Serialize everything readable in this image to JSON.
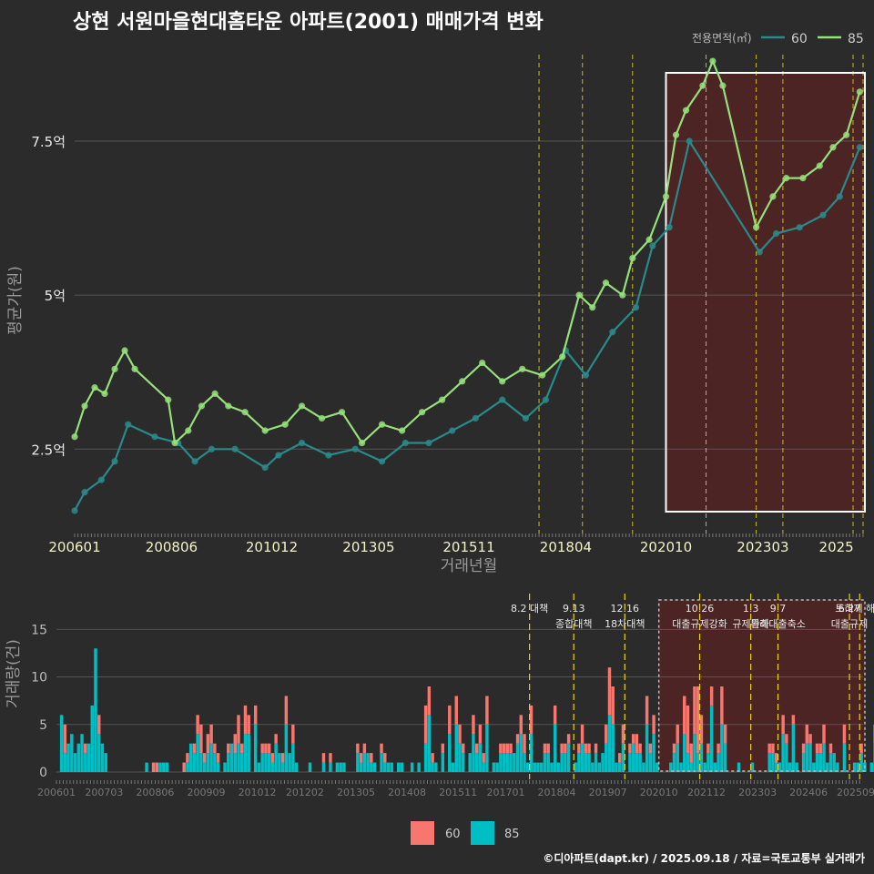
{
  "title": "상현 서원마을현대홈타운 아파트(2001) 매매가격 변화",
  "credit": "©디아파트(dapt.kr) / 2025.09.18 / 자료=국토교통부 실거래가",
  "colors": {
    "background": "#2b2b2b",
    "grid": "#555555",
    "series_60_line": "#2a8a8a",
    "series_85_line": "#95e07a",
    "bar_60": "#f8766d",
    "bar_85": "#00bfc4",
    "event_line": "#e8d21a",
    "highlight_fill": "#6a1f1f"
  },
  "chart_data": [
    {
      "type": "line",
      "ylabel": "평균가(원)",
      "xlabel": "거래년월",
      "y_ticks": [
        {
          "value": 2.5,
          "label": "2.5억"
        },
        {
          "value": 5,
          "label": "5억"
        },
        {
          "value": 7.5,
          "label": "7.5억"
        }
      ],
      "ylim": [
        1.1,
        9.2
      ],
      "x_ticks": [
        "200601",
        "200806",
        "201012",
        "201305",
        "201511",
        "201804",
        "202010",
        "202303",
        "2025"
      ],
      "legend": {
        "title": "전용면적(㎡)",
        "placement": "top-right",
        "items": [
          "60",
          "85"
        ]
      },
      "series": [
        {
          "name": "85",
          "points": [
            [
              "2006-01",
              2.7
            ],
            [
              "2006-04",
              3.2
            ],
            [
              "2006-07",
              3.5
            ],
            [
              "2006-10",
              3.4
            ],
            [
              "2007-01",
              3.8
            ],
            [
              "2007-04",
              4.1
            ],
            [
              "2007-07",
              3.8
            ],
            [
              "2008-05",
              3.3
            ],
            [
              "2008-07",
              2.6
            ],
            [
              "2008-11",
              2.8
            ],
            [
              "2009-03",
              3.2
            ],
            [
              "2009-07",
              3.4
            ],
            [
              "2009-11",
              3.2
            ],
            [
              "2010-04",
              3.1
            ],
            [
              "2010-10",
              2.8
            ],
            [
              "2011-04",
              2.9
            ],
            [
              "2011-09",
              3.2
            ],
            [
              "2012-03",
              3.0
            ],
            [
              "2012-09",
              3.1
            ],
            [
              "2013-03",
              2.6
            ],
            [
              "2013-09",
              2.9
            ],
            [
              "2014-03",
              2.8
            ],
            [
              "2014-09",
              3.1
            ],
            [
              "2015-03",
              3.3
            ],
            [
              "2015-09",
              3.6
            ],
            [
              "2016-03",
              3.9
            ],
            [
              "2016-09",
              3.6
            ],
            [
              "2017-03",
              3.8
            ],
            [
              "2017-09",
              3.7
            ],
            [
              "2018-03",
              4.0
            ],
            [
              "2018-08",
              5.0
            ],
            [
              "2018-12",
              4.8
            ],
            [
              "2019-04",
              5.2
            ],
            [
              "2019-09",
              5.0
            ],
            [
              "2019-12",
              5.6
            ],
            [
              "2020-05",
              5.9
            ],
            [
              "2020-10",
              6.6
            ],
            [
              "2021-01",
              7.6
            ],
            [
              "2021-04",
              8.0
            ],
            [
              "2021-09",
              8.4
            ],
            [
              "2021-12",
              8.8
            ],
            [
              "2022-03",
              8.4
            ],
            [
              "2023-01",
              6.1
            ],
            [
              "2023-06",
              6.6
            ],
            [
              "2023-10",
              6.9
            ],
            [
              "2024-03",
              6.9
            ],
            [
              "2024-08",
              7.1
            ],
            [
              "2024-12",
              7.4
            ],
            [
              "2025-04",
              7.6
            ],
            [
              "2025-08",
              8.3
            ]
          ]
        },
        {
          "name": "60",
          "points": [
            [
              "2006-01",
              1.5
            ],
            [
              "2006-04",
              1.8
            ],
            [
              "2006-09",
              2.0
            ],
            [
              "2007-01",
              2.3
            ],
            [
              "2007-05",
              2.9
            ],
            [
              "2008-01",
              2.7
            ],
            [
              "2008-08",
              2.6
            ],
            [
              "2009-01",
              2.3
            ],
            [
              "2009-06",
              2.5
            ],
            [
              "2010-01",
              2.5
            ],
            [
              "2010-10",
              2.2
            ],
            [
              "2011-02",
              2.4
            ],
            [
              "2011-09",
              2.6
            ],
            [
              "2012-05",
              2.4
            ],
            [
              "2013-01",
              2.5
            ],
            [
              "2013-09",
              2.3
            ],
            [
              "2014-04",
              2.6
            ],
            [
              "2014-11",
              2.6
            ],
            [
              "2015-06",
              2.8
            ],
            [
              "2016-01",
              3.0
            ],
            [
              "2016-09",
              3.3
            ],
            [
              "2017-04",
              3.0
            ],
            [
              "2017-10",
              3.3
            ],
            [
              "2018-04",
              4.1
            ],
            [
              "2018-10",
              3.7
            ],
            [
              "2019-06",
              4.4
            ],
            [
              "2020-01",
              4.8
            ],
            [
              "2020-06",
              5.8
            ],
            [
              "2020-11",
              6.1
            ],
            [
              "2021-05",
              7.5
            ],
            [
              "2023-02",
              5.7
            ],
            [
              "2023-07",
              6.0
            ],
            [
              "2024-02",
              6.1
            ],
            [
              "2024-09",
              6.3
            ],
            [
              "2025-02",
              6.6
            ],
            [
              "2025-08",
              7.4
            ]
          ]
        }
      ],
      "event_dates": [
        "2017-08",
        "2018-09",
        "2019-12",
        "2021-10",
        "2023-01",
        "2023-09",
        "2025-06",
        "2025-09"
      ],
      "highlight": {
        "from": "2020-10",
        "to": "2025-09"
      }
    },
    {
      "type": "bar",
      "ylabel": "거래량(건)",
      "y_ticks": [
        0,
        5,
        10,
        15
      ],
      "ylim": [
        0,
        18
      ],
      "x_ticks": [
        "200601",
        "200703",
        "200806",
        "200909",
        "201012",
        "201202",
        "201305",
        "201408",
        "201511",
        "201701",
        "201804",
        "201907",
        "202010",
        "202112",
        "202303",
        "202406",
        "202509"
      ],
      "legend": {
        "placement": "bottom",
        "items": [
          "60",
          "85"
        ]
      },
      "annotations": [
        {
          "date": "2017-08",
          "lines": [
            "8.2 대책"
          ]
        },
        {
          "date": "2018-09",
          "lines": [
            "9.13",
            "종합대책"
          ]
        },
        {
          "date": "2019-12",
          "lines": [
            "12.16",
            "18차대책"
          ]
        },
        {
          "date": "2021-10",
          "lines": [
            "10.26",
            "대출규제강화"
          ]
        },
        {
          "date": "2023-01",
          "lines": [
            "1.3",
            "규제완화"
          ]
        },
        {
          "date": "2023-09",
          "lines": [
            "9.7",
            "특례대출축소"
          ]
        },
        {
          "date": "2025-06",
          "lines": [
            "6.27",
            "대출규제"
          ]
        },
        {
          "date": "2025-09",
          "lines": [
            "토허제 해제"
          ]
        }
      ],
      "monthly_85": [
        0,
        6,
        2,
        3,
        4,
        2,
        3,
        4,
        2,
        3,
        7,
        13,
        4,
        3,
        2,
        0,
        0,
        0,
        0,
        0,
        0,
        0,
        0,
        0,
        0,
        0,
        1,
        0,
        0,
        0,
        1,
        1,
        1,
        0,
        0,
        0,
        0,
        0,
        1,
        3,
        2,
        4,
        2,
        1,
        2,
        3,
        2,
        1,
        0,
        1,
        2,
        3,
        2,
        3,
        2,
        4,
        4,
        0,
        5,
        1,
        2,
        2,
        2,
        1,
        3,
        2,
        1,
        5,
        2,
        3,
        1,
        0,
        0,
        0,
        1,
        0,
        0,
        0,
        1,
        0,
        1,
        0,
        1,
        1,
        1,
        0,
        0,
        0,
        2,
        1,
        2,
        2,
        1,
        1,
        0,
        2,
        1,
        1,
        1,
        0,
        1,
        1,
        0,
        0,
        1,
        0,
        1,
        0,
        3,
        6,
        1,
        1,
        0,
        2,
        0,
        4,
        1,
        5,
        3,
        2,
        0,
        2,
        4,
        2,
        3,
        1,
        5,
        0,
        1,
        1,
        2,
        2,
        2,
        2,
        2,
        3,
        4,
        2,
        1,
        4,
        1,
        1,
        1,
        2,
        2,
        1,
        5,
        1,
        2,
        2,
        3,
        0,
        1,
        2,
        3,
        2,
        2,
        1,
        2,
        1,
        2,
        3,
        6,
        5,
        1,
        1,
        3,
        0,
        2,
        3,
        2,
        2,
        1,
        5,
        2,
        4,
        1,
        0,
        0,
        0,
        1,
        2,
        3,
        1,
        4,
        2,
        1,
        4,
        2,
        3,
        1,
        2,
        7,
        1,
        2,
        5,
        3,
        0,
        0,
        0,
        1,
        0,
        0,
        0,
        1,
        0,
        0,
        0,
        0,
        2,
        2,
        1,
        1,
        4,
        3,
        1,
        5,
        1,
        0,
        2,
        3,
        3,
        1,
        2,
        2,
        3,
        1,
        2,
        2,
        1,
        0,
        3,
        0,
        0,
        1,
        1,
        2,
        1,
        0,
        1,
        3,
        1,
        2,
        2,
        4,
        4,
        1,
        3,
        2,
        1,
        1,
        2,
        3,
        4,
        2,
        3,
        4,
        1,
        2,
        1,
        3,
        5,
        4,
        0,
        0,
        1,
        2,
        3,
        2,
        1,
        5,
        3,
        4,
        1,
        3,
        2,
        2,
        1,
        1,
        5,
        2,
        4
      ],
      "monthly_60": [
        0,
        0,
        3,
        0,
        0,
        0,
        0,
        0,
        1,
        0,
        0,
        0,
        2,
        0,
        0,
        0,
        0,
        0,
        0,
        0,
        0,
        0,
        0,
        0,
        0,
        0,
        0,
        0,
        1,
        1,
        0,
        0,
        0,
        0,
        0,
        0,
        0,
        1,
        1,
        0,
        1,
        2,
        3,
        1,
        2,
        2,
        1,
        1,
        0,
        0,
        1,
        0,
        2,
        3,
        1,
        3,
        2,
        0,
        2,
        0,
        1,
        1,
        1,
        1,
        1,
        0,
        1,
        3,
        0,
        2,
        0,
        0,
        0,
        0,
        0,
        0,
        0,
        0,
        1,
        0,
        1,
        0,
        0,
        0,
        0,
        0,
        0,
        0,
        1,
        1,
        1,
        0,
        1,
        0,
        0,
        1,
        1,
        0,
        0,
        0,
        0,
        0,
        0,
        0,
        0,
        0,
        0,
        0,
        4,
        3,
        1,
        0,
        0,
        1,
        0,
        3,
        0,
        3,
        2,
        1,
        0,
        0,
        2,
        1,
        2,
        1,
        3,
        0,
        0,
        0,
        1,
        1,
        1,
        1,
        0,
        1,
        2,
        2,
        0,
        3,
        0,
        0,
        0,
        1,
        1,
        0,
        2,
        0,
        1,
        1,
        1,
        0,
        0,
        1,
        2,
        1,
        1,
        0,
        1,
        0,
        0,
        2,
        5,
        4,
        0,
        1,
        2,
        0,
        1,
        1,
        2,
        1,
        0,
        3,
        1,
        2,
        0,
        0,
        0,
        0,
        0,
        1,
        2,
        0,
        4,
        5,
        2,
        5,
        7,
        3,
        0,
        1,
        2,
        0,
        1,
        4,
        2,
        0,
        0,
        0,
        0,
        0,
        0,
        0,
        0,
        0,
        0,
        0,
        0,
        1,
        1,
        1,
        0,
        2,
        1,
        0,
        1,
        0,
        0,
        1,
        2,
        1,
        0,
        1,
        1,
        2,
        0,
        1,
        0,
        0,
        0,
        2,
        0,
        0,
        0,
        0,
        1,
        0,
        0,
        0,
        2,
        0,
        1,
        1,
        1,
        2,
        0,
        2,
        1,
        0,
        0,
        1,
        2,
        3,
        1,
        2,
        2,
        0,
        1,
        0,
        2,
        4,
        3,
        0,
        0,
        0,
        1,
        1,
        1,
        0,
        4,
        2,
        3,
        0,
        2,
        1,
        1,
        0,
        0,
        2,
        1,
        3
      ]
    }
  ]
}
